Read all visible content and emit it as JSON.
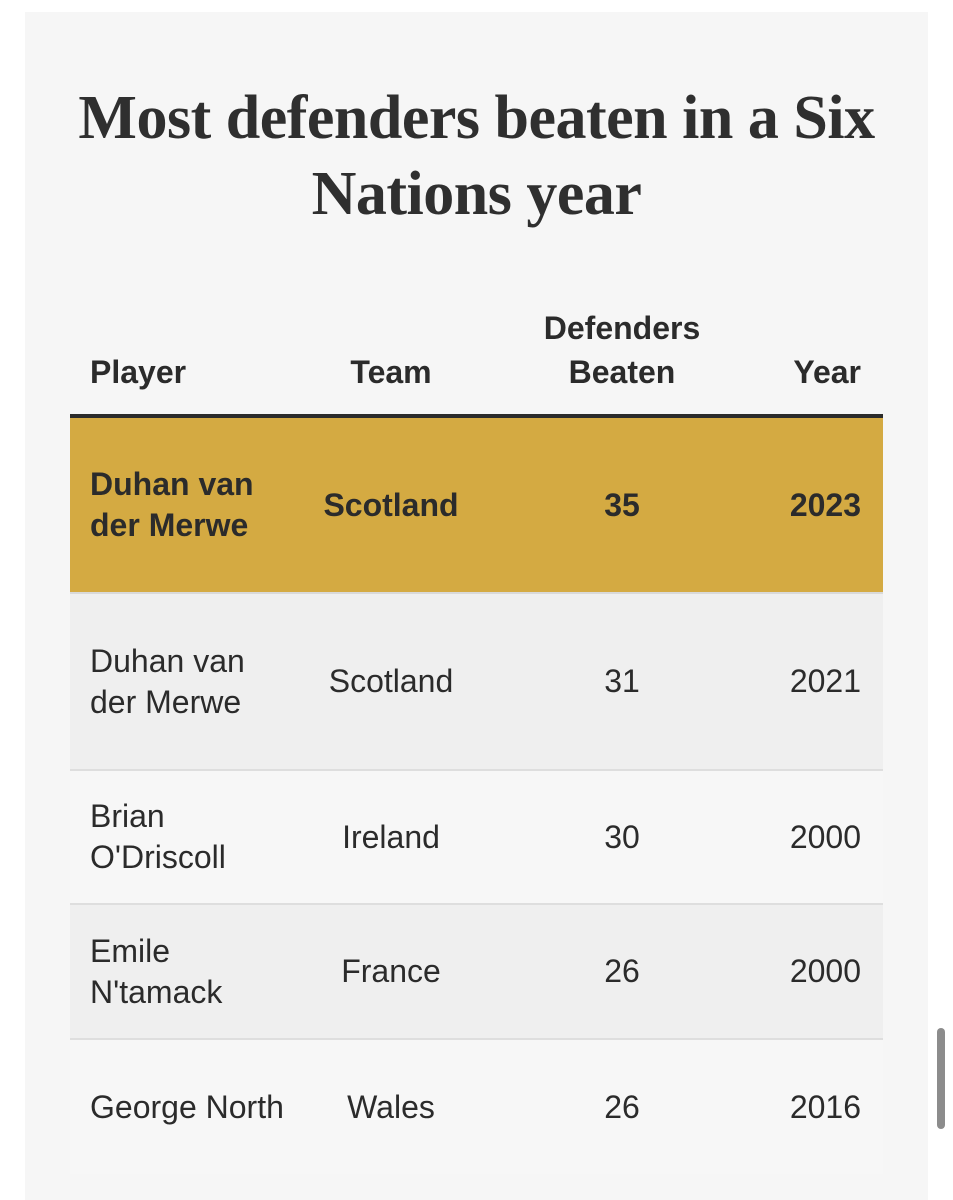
{
  "title": "Most defenders beaten in a Six Nations year",
  "colors": {
    "highlight_row": "#d4aa42",
    "card_background": "#f6f6f6",
    "text": "#2b2b2b"
  },
  "table": {
    "headers": {
      "player": "Player",
      "team": "Team",
      "defenders_line1": "Defenders",
      "defenders_line2": "Beaten",
      "year": "Year"
    },
    "rows": [
      {
        "player": "Duhan van der Merwe",
        "team": "Scotland",
        "defenders_beaten": "35",
        "year": "2023",
        "highlighted": true
      },
      {
        "player": "Duhan van der Merwe",
        "team": "Scotland",
        "defenders_beaten": "31",
        "year": "2021",
        "highlighted": false
      },
      {
        "player": "Brian O'Driscoll",
        "team": "Ireland",
        "defenders_beaten": "30",
        "year": "2000",
        "highlighted": false
      },
      {
        "player": "Emile N'tamack",
        "team": "France",
        "defenders_beaten": "26",
        "year": "2000",
        "highlighted": false
      },
      {
        "player": "George North",
        "team": "Wales",
        "defenders_beaten": "26",
        "year": "2016",
        "highlighted": false
      }
    ]
  }
}
